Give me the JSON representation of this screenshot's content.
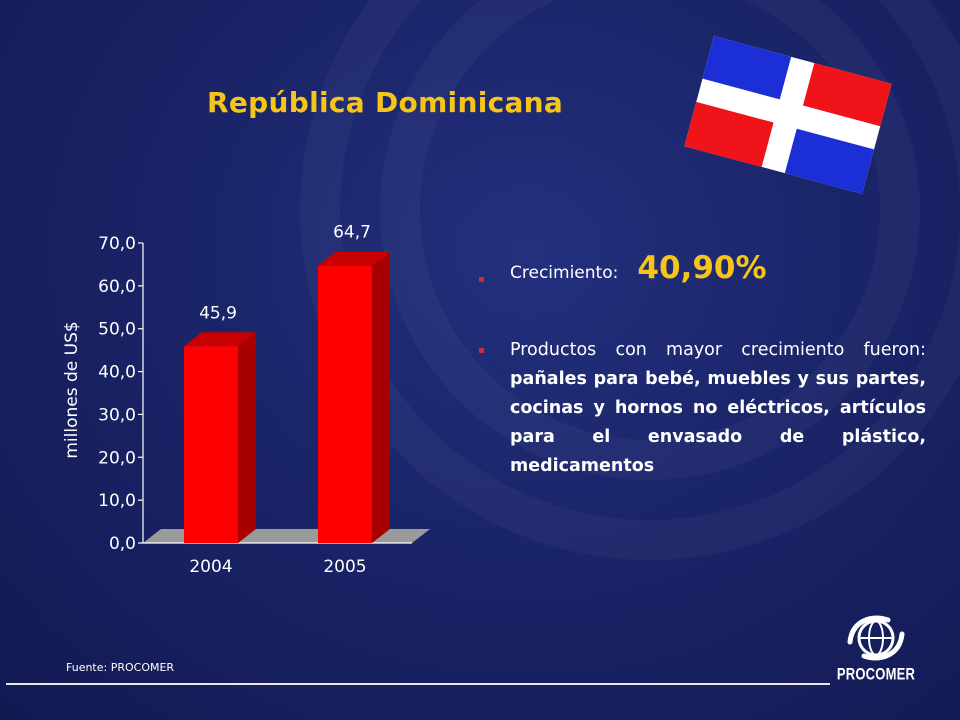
{
  "slide": {
    "title": "República Dominicana",
    "source": "Fuente: PROCOMER"
  },
  "flag": {
    "colors": {
      "blue": "#1c2fd6",
      "red": "#f0141a",
      "white": "#ffffff"
    }
  },
  "highlights": {
    "growth_label": "Crecimiento:",
    "growth_value": "40,90%",
    "products_prefix": "Productos con mayor crecimiento fueron:",
    "products_list": "pañales para bebé, muebles y sus partes, cocinas y hornos no eléctricos, artículos para el envasado de plástico, medicamentos"
  },
  "logo": {
    "text": "PROCOMER",
    "icon": "globe-icon"
  },
  "chart_data": {
    "type": "bar",
    "categories": [
      "2004",
      "2005"
    ],
    "values": [
      45.9,
      64.7
    ],
    "value_labels": [
      "45,9",
      "64,7"
    ],
    "ylabel": "millones de US$",
    "ylim": [
      0,
      70
    ],
    "yticks": [
      "0,0",
      "10,0",
      "20,0",
      "30,0",
      "40,0",
      "50,0",
      "60,0",
      "70,0"
    ],
    "grid": false,
    "legend": "none",
    "colors": {
      "bar": "#ff0000",
      "bar_side": "#a80000",
      "bar_top": "#c80000",
      "floor": "#9a9a9a"
    }
  }
}
